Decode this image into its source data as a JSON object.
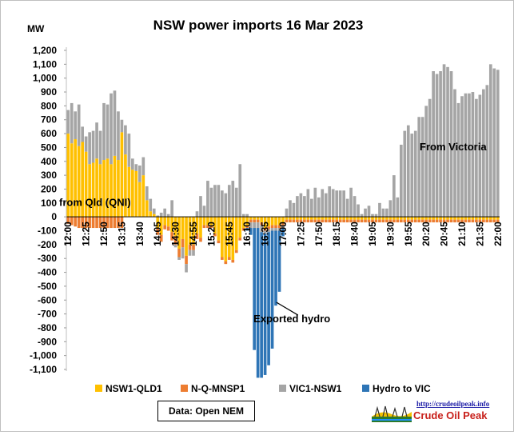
{
  "chart_data": {
    "type": "bar",
    "stacked": true,
    "title": "NSW power imports  16 Mar 2023",
    "ylabel": "MW",
    "ylim": [
      -1100,
      1200
    ],
    "ytick_step": 100,
    "grid": false,
    "legend_position": "bottom",
    "x": [
      "12:00",
      "12:05",
      "12:10",
      "12:15",
      "12:20",
      "12:25",
      "12:30",
      "12:35",
      "12:40",
      "12:45",
      "12:50",
      "12:55",
      "13:00",
      "13:05",
      "13:10",
      "13:15",
      "13:20",
      "13:25",
      "13:30",
      "13:35",
      "13:40",
      "13:45",
      "13:50",
      "13:55",
      "14:00",
      "14:05",
      "14:10",
      "14:15",
      "14:20",
      "14:25",
      "14:30",
      "14:35",
      "14:40",
      "14:45",
      "14:50",
      "14:55",
      "15:00",
      "15:05",
      "15:10",
      "15:15",
      "15:20",
      "15:25",
      "15:30",
      "15:35",
      "15:40",
      "15:45",
      "15:50",
      "15:55",
      "16:00",
      "16:05",
      "16:10",
      "16:15",
      "16:20",
      "16:25",
      "16:30",
      "16:35",
      "16:40",
      "16:45",
      "16:50",
      "16:55",
      "17:00",
      "17:05",
      "17:10",
      "17:15",
      "17:20",
      "17:25",
      "17:30",
      "17:35",
      "17:40",
      "17:45",
      "17:50",
      "17:55",
      "18:00",
      "18:05",
      "18:10",
      "18:15",
      "18:20",
      "18:25",
      "18:30",
      "18:35",
      "18:40",
      "18:45",
      "18:50",
      "18:55",
      "19:00",
      "19:05",
      "19:10",
      "19:15",
      "19:20",
      "19:25",
      "19:30",
      "19:35",
      "19:40",
      "19:45",
      "19:50",
      "19:55",
      "20:00",
      "20:05",
      "20:10",
      "20:15",
      "20:20",
      "20:25",
      "20:30",
      "20:35",
      "20:40",
      "20:45",
      "20:50",
      "20:55",
      "21:00",
      "21:05",
      "21:10",
      "21:15",
      "21:20",
      "21:25",
      "21:30",
      "21:35",
      "21:40",
      "21:45",
      "21:50",
      "21:55",
      "22:00"
    ],
    "x_tick_labels": [
      "12:00",
      "12:25",
      "12:50",
      "13:15",
      "13:40",
      "14:05",
      "14:30",
      "14:55",
      "15:20",
      "15:45",
      "16:10",
      "16:35",
      "17:00",
      "17:25",
      "17:50",
      "18:15",
      "18:40",
      "19:05",
      "19:30",
      "19:55",
      "20:20",
      "20:45",
      "21:10",
      "21:35",
      "22:00"
    ],
    "series": [
      {
        "name": "NSW1-QLD1",
        "color": "#FFC000",
        "values": [
          600,
          530,
          560,
          510,
          540,
          470,
          380,
          390,
          420,
          380,
          410,
          420,
          380,
          440,
          410,
          610,
          450,
          360,
          340,
          330,
          250,
          300,
          120,
          40,
          20,
          -80,
          -130,
          -60,
          -70,
          -110,
          -140,
          -230,
          -160,
          -280,
          -200,
          -200,
          -120,
          -150,
          -60,
          -60,
          -60,
          -120,
          -170,
          -290,
          -320,
          -290,
          -310,
          -240,
          -150,
          -80,
          -60,
          -20,
          -20,
          -20,
          -40,
          -80,
          -70,
          -60,
          -60,
          -60,
          -40,
          -20,
          -20,
          -20,
          -20,
          -20,
          -20,
          -20,
          -20,
          -20,
          -20,
          -20,
          -20,
          -20,
          -20,
          -20,
          -20,
          -20,
          -20,
          -20,
          -20,
          -20,
          -20,
          -20,
          -20,
          -20,
          -20,
          -20,
          -20,
          -20,
          -20,
          -20,
          -20,
          -20,
          -20,
          -20,
          -20,
          -20,
          -20,
          -20,
          -20,
          -20,
          -20,
          -20,
          -20,
          -20,
          -20,
          -20,
          -20,
          -20,
          -20,
          -20,
          -20,
          -20,
          -20,
          -20,
          -20,
          -20,
          -20,
          -20,
          -20
        ]
      },
      {
        "name": "N-Q-MNSP1",
        "color": "#ED7D31",
        "values": [
          -50,
          -60,
          -70,
          -80,
          -80,
          -80,
          -80,
          -80,
          -80,
          -80,
          -80,
          -80,
          -80,
          -80,
          -80,
          -80,
          0,
          0,
          0,
          0,
          0,
          0,
          0,
          0,
          0,
          -50,
          -50,
          -30,
          -30,
          -60,
          -60,
          -60,
          -60,
          -60,
          -40,
          -40,
          -40,
          -30,
          -20,
          -20,
          -20,
          -20,
          -20,
          -20,
          -20,
          -20,
          -20,
          -20,
          -20,
          -20,
          -20,
          -20,
          -20,
          -20,
          -20,
          -20,
          -20,
          -20,
          -20,
          -20,
          -20,
          -20,
          -20,
          -20,
          -20,
          -20,
          -20,
          -20,
          -20,
          -20,
          -20,
          -20,
          -20,
          -20,
          -20,
          -20,
          -20,
          -20,
          -20,
          -20,
          -20,
          -20,
          -20,
          -20,
          -20,
          -20,
          -20,
          -20,
          -20,
          -20,
          -20,
          -20,
          -20,
          -20,
          -20,
          -20,
          -20,
          -20,
          -20,
          -20,
          -20,
          -20,
          -20,
          -20,
          -20,
          -20,
          -20,
          -20,
          -20,
          -20,
          -20,
          -20,
          -20,
          -20,
          -20,
          -20,
          -20,
          -20,
          -20,
          -20,
          -20
        ]
      },
      {
        "name": "VIC1-NSW1",
        "color": "#A5A5A5",
        "values": [
          170,
          290,
          200,
          300,
          110,
          110,
          230,
          230,
          260,
          240,
          410,
          390,
          510,
          470,
          350,
          90,
          210,
          240,
          80,
          50,
          120,
          130,
          100,
          90,
          40,
          10,
          30,
          60,
          20,
          120,
          -20,
          -20,
          -80,
          -60,
          -40,
          -40,
          40,
          150,
          80,
          260,
          210,
          230,
          230,
          190,
          170,
          230,
          260,
          210,
          380,
          20,
          20,
          -40,
          -40,
          -40,
          -50,
          -20,
          -20,
          -20,
          -20,
          -20,
          -20,
          60,
          120,
          100,
          150,
          170,
          150,
          200,
          130,
          210,
          140,
          200,
          170,
          220,
          200,
          190,
          190,
          190,
          130,
          210,
          150,
          90,
          20,
          60,
          80,
          20,
          20,
          100,
          60,
          60,
          120,
          300,
          140,
          520,
          620,
          660,
          600,
          620,
          720,
          720,
          800,
          850,
          1050,
          1030,
          1050,
          1100,
          1080,
          1050,
          920,
          820,
          870,
          890,
          890,
          900,
          850,
          880,
          920,
          950,
          1100,
          1070,
          1060
        ]
      },
      {
        "name": "Hydro to VIC",
        "color": "#2E75B6",
        "values": [
          0,
          0,
          0,
          0,
          0,
          0,
          0,
          0,
          0,
          0,
          0,
          0,
          0,
          0,
          0,
          0,
          0,
          0,
          0,
          0,
          0,
          0,
          0,
          0,
          0,
          0,
          0,
          0,
          0,
          0,
          0,
          0,
          0,
          0,
          0,
          0,
          0,
          0,
          0,
          0,
          0,
          0,
          0,
          0,
          0,
          0,
          0,
          0,
          0,
          0,
          -20,
          -50,
          -880,
          -1080,
          -1050,
          -1020,
          -960,
          -850,
          -540,
          -440,
          -60,
          0,
          0,
          0,
          0,
          0,
          0,
          0,
          0,
          0,
          0,
          0,
          0,
          0,
          0,
          0,
          0,
          0,
          0,
          0,
          0,
          0,
          0,
          0,
          0,
          0,
          0,
          0,
          0,
          0,
          0,
          0,
          0,
          0,
          0,
          0,
          0,
          0,
          0,
          0,
          0,
          0,
          0,
          0,
          0,
          0,
          0,
          0,
          0,
          0,
          0,
          0,
          0,
          0,
          0,
          0,
          0,
          0,
          0,
          0,
          0
        ]
      }
    ],
    "annotations": [
      {
        "text": "from Qld (QNI)",
        "x": "12:40",
        "y": 80
      },
      {
        "text": "From Victoria",
        "x": "21:00",
        "y": 480
      },
      {
        "text": "Exported hydro",
        "x": "17:15",
        "y": -760
      }
    ],
    "source": "Data: Open NEM"
  },
  "logo": {
    "url": "http://crudeoilpeak.info",
    "name": "Crude Oil Peak"
  }
}
